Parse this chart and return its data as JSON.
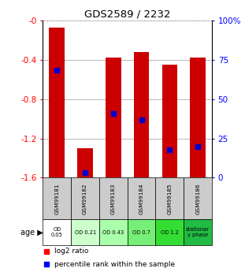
{
  "title": "GDS2589 / 2232",
  "samples": [
    "GSM99181",
    "GSM99182",
    "GSM99183",
    "GSM99184",
    "GSM99185",
    "GSM99186"
  ],
  "log2_ratio": [
    -0.07,
    -1.3,
    -0.38,
    -0.32,
    -0.45,
    -0.38
  ],
  "percentile_rank": [
    0.685,
    0.03,
    0.41,
    0.37,
    0.18,
    0.2
  ],
  "age_labels": [
    "OD\n0.05",
    "OD 0.21",
    "OD 0.43",
    "OD 0.7",
    "OD 1.2",
    "stationar\ny phase"
  ],
  "age_colors": [
    "#ffffff",
    "#ccffcc",
    "#aaffaa",
    "#77ee77",
    "#33dd33",
    "#22bb44"
  ],
  "ylim_left": [
    -1.6,
    0.0
  ],
  "ylim_right": [
    0,
    100
  ],
  "yticks_left": [
    -1.6,
    -1.2,
    -0.8,
    -0.4,
    0.0
  ],
  "ytick_labels_left": [
    "-1.6",
    "-1.2",
    "-0.8",
    "-0.4",
    "-0"
  ],
  "yticks_right": [
    0,
    25,
    50,
    75,
    100
  ],
  "ytick_labels_right": [
    "0",
    "25",
    "50",
    "75",
    "100%"
  ],
  "bar_color": "#cc0000",
  "dot_color": "#0000cc",
  "dot_size": 18,
  "bar_width": 0.55
}
